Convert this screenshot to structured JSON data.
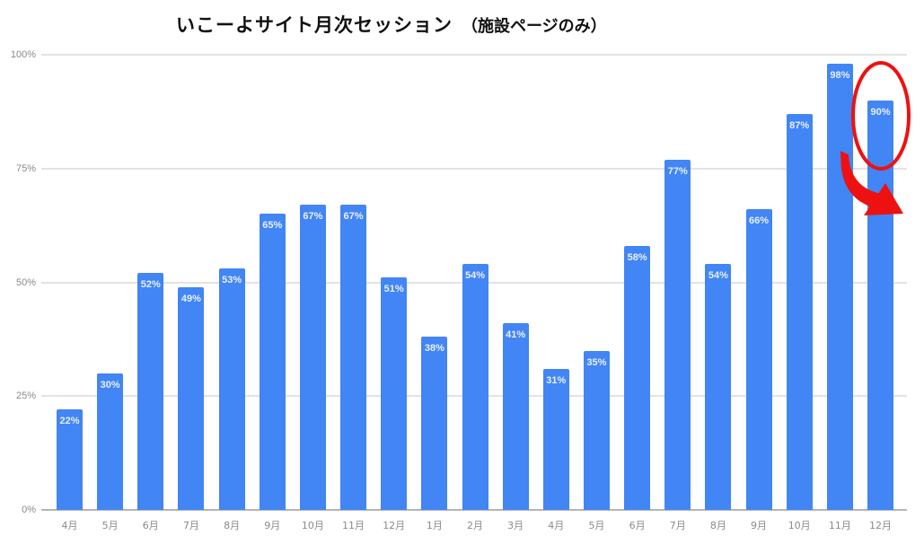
{
  "title": {
    "main": "いこーよサイト月次セッション",
    "sub": "（施設ページのみ）"
  },
  "colors": {
    "bar": "#4285f4",
    "annotation": "#ee1111",
    "grid": "#e3e3e3",
    "axis_text": "#8a8a8a"
  },
  "y_ticks": [
    "100%",
    "75%",
    "50%",
    "25%",
    "0%"
  ],
  "chart_data": {
    "type": "bar",
    "title": "いこーよサイト月次セッション （施設ページのみ）",
    "xlabel": "",
    "ylabel": "",
    "ylim": [
      0,
      100
    ],
    "y_ticks": [
      0,
      25,
      50,
      75,
      100
    ],
    "y_tick_labels": [
      "0%",
      "25%",
      "50%",
      "75%",
      "100%"
    ],
    "grid": true,
    "legend": "none",
    "categories": [
      "4月",
      "5月",
      "6月",
      "7月",
      "8月",
      "9月",
      "10月",
      "11月",
      "12月",
      "1月",
      "2月",
      "3月",
      "4月",
      "5月",
      "6月",
      "7月",
      "8月",
      "9月",
      "10月",
      "11月",
      "12月"
    ],
    "values": [
      22,
      30,
      52,
      49,
      53,
      65,
      67,
      67,
      51,
      38,
      54,
      41,
      31,
      35,
      58,
      77,
      54,
      66,
      87,
      98,
      90
    ],
    "value_labels": [
      "22%",
      "30%",
      "52%",
      "49%",
      "53%",
      "65%",
      "67%",
      "67%",
      "51%",
      "38%",
      "54%",
      "41%",
      "31%",
      "35%",
      "58%",
      "77%",
      "54%",
      "66%",
      "87%",
      "98%",
      "90%"
    ],
    "annotations": [
      {
        "type": "ellipse",
        "target_category_index": 20,
        "color": "#ee1111"
      },
      {
        "type": "curved-arrow",
        "direction": "down-right",
        "color": "#ee1111"
      }
    ]
  }
}
